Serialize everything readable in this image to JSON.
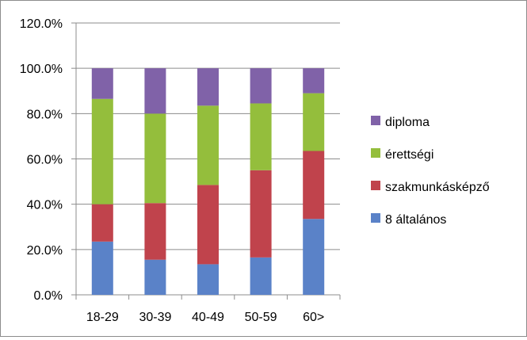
{
  "chart_data": {
    "type": "bar",
    "stacked": true,
    "title": "",
    "xlabel": "",
    "ylabel": "",
    "ylim": [
      0,
      120
    ],
    "ytick_values": [
      0,
      20,
      40,
      60,
      80,
      100,
      120
    ],
    "ytick_labels": [
      "0.0%",
      "20.0%",
      "40.0%",
      "60.0%",
      "80.0%",
      "100.0%",
      "120.0%"
    ],
    "grid": true,
    "legend_position": "right",
    "categories": [
      "18-29",
      "30-39",
      "40-49",
      "50-59",
      "60>"
    ],
    "series": [
      {
        "name": "8 általános",
        "color": "#5a82c8",
        "values": [
          23.5,
          15.5,
          13.5,
          16.5,
          33.5
        ]
      },
      {
        "name": "szakmunkásképző",
        "color": "#c0434c",
        "values": [
          16.5,
          25.0,
          35.0,
          38.5,
          30.0
        ]
      },
      {
        "name": "érettségi",
        "color": "#94be3c",
        "values": [
          46.5,
          39.5,
          35.0,
          29.5,
          25.5
        ]
      },
      {
        "name": "diploma",
        "color": "#8062a8",
        "values": [
          13.5,
          20.0,
          16.5,
          15.5,
          11.0
        ]
      }
    ],
    "legend_order": [
      "diploma",
      "érettségi",
      "szakmunkásképző",
      "8 általános"
    ]
  }
}
